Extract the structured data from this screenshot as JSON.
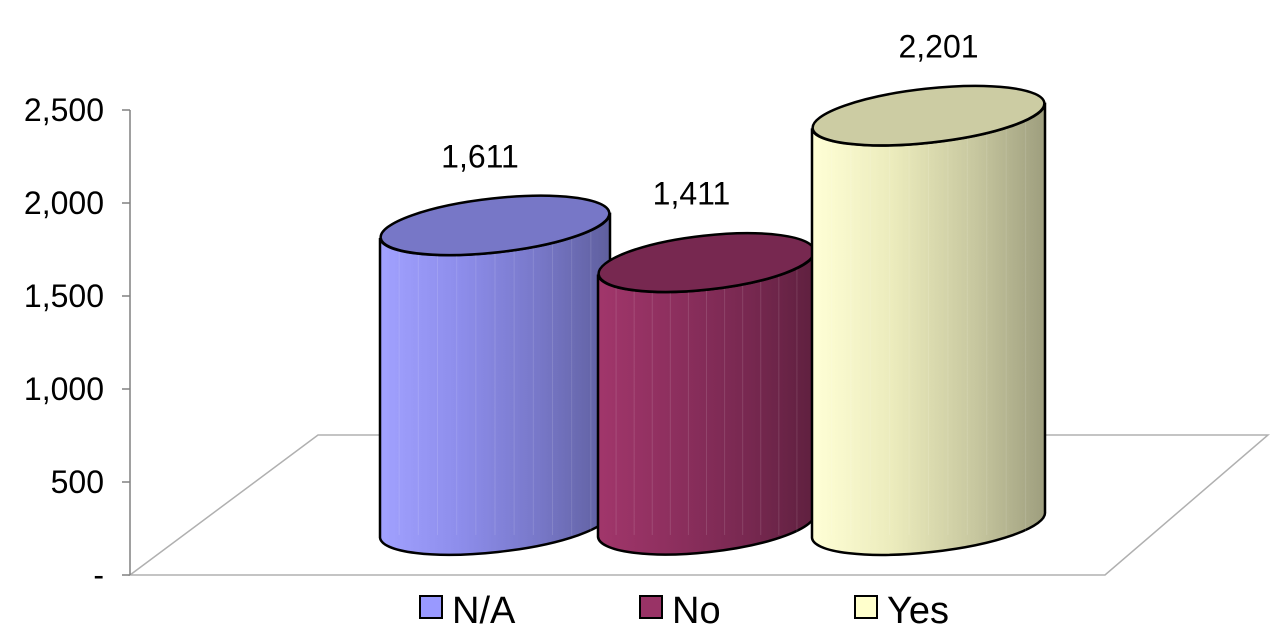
{
  "chart_data": {
    "type": "bar",
    "style": "3d-cylinder",
    "categories": [
      "N/A",
      "No",
      "Yes"
    ],
    "values": [
      1611,
      1411,
      2201
    ],
    "value_labels": [
      "1,611",
      "1,411",
      "2,201"
    ],
    "y_tick_labels": [
      "-",
      "500",
      "1,000",
      "1,500",
      "2,000",
      "2,500"
    ],
    "y_tick_values": [
      0,
      500,
      1000,
      1500,
      2000,
      2500
    ],
    "ylim": [
      0,
      2500
    ],
    "grid": false,
    "legend": {
      "position": "bottom",
      "entries": [
        "N/A",
        "No",
        "Yes"
      ]
    },
    "colors": [
      "#9999ff",
      "#993366",
      "#ffffcc"
    ]
  }
}
